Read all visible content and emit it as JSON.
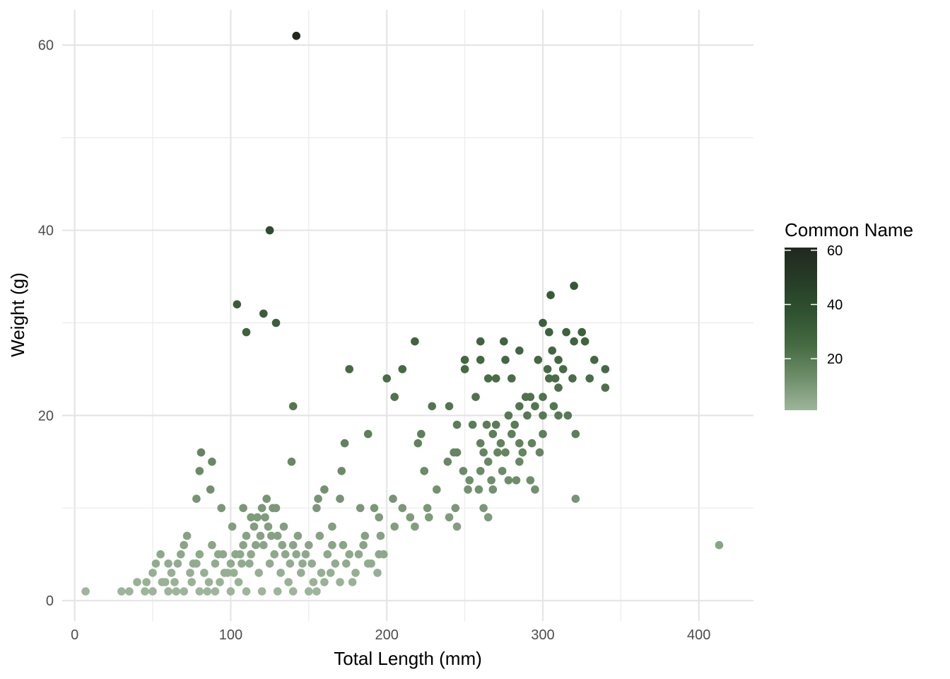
{
  "chart_data": {
    "type": "scatter",
    "xlabel": "Total Length (mm)",
    "ylabel": "Weight (g)",
    "xlim": [
      -8,
      435
    ],
    "ylim": [
      -2.2,
      63.8
    ],
    "x_ticks": [
      0,
      100,
      200,
      300,
      400
    ],
    "y_ticks": [
      0,
      20,
      40,
      60
    ],
    "grid": true,
    "legend": {
      "title": "Common Name",
      "position": "right",
      "type": "colorbar",
      "range": [
        1,
        61
      ],
      "ticks": [
        20,
        40,
        60
      ],
      "colors": [
        "#9db59a",
        "#6e8e6a",
        "#466a42",
        "#2f5230",
        "#263c27",
        "#22281f"
      ]
    },
    "color_by": "y",
    "points": [
      [
        142,
        61
      ],
      [
        125,
        40
      ],
      [
        104,
        32
      ],
      [
        121,
        31
      ],
      [
        110,
        29
      ],
      [
        129,
        30
      ],
      [
        140,
        21
      ],
      [
        139,
        15
      ],
      [
        81,
        16
      ],
      [
        80,
        14
      ],
      [
        88,
        15
      ],
      [
        87,
        12
      ],
      [
        78,
        11
      ],
      [
        94,
        10
      ],
      [
        101,
        8
      ],
      [
        176,
        25
      ],
      [
        188,
        18
      ],
      [
        173,
        17
      ],
      [
        171,
        14
      ],
      [
        160,
        12
      ],
      [
        156,
        11
      ],
      [
        155,
        10
      ],
      [
        170,
        11
      ],
      [
        165,
        8
      ],
      [
        200,
        24
      ],
      [
        218,
        28
      ],
      [
        210,
        25
      ],
      [
        205,
        22
      ],
      [
        220,
        17
      ],
      [
        222,
        18
      ],
      [
        229,
        21
      ],
      [
        240,
        21
      ],
      [
        250,
        26
      ],
      [
        260,
        28
      ],
      [
        250,
        25
      ],
      [
        257,
        22
      ],
      [
        260,
        26
      ],
      [
        265,
        24
      ],
      [
        270,
        24
      ],
      [
        275,
        28
      ],
      [
        276,
        26
      ],
      [
        280,
        24
      ],
      [
        285,
        27
      ],
      [
        297,
        26
      ],
      [
        300,
        30
      ],
      [
        305,
        33
      ],
      [
        320,
        34
      ],
      [
        304,
        29
      ],
      [
        315,
        29
      ],
      [
        325,
        29
      ],
      [
        306,
        27
      ],
      [
        310,
        26
      ],
      [
        303,
        25
      ],
      [
        313,
        25
      ],
      [
        320,
        28
      ],
      [
        327,
        28
      ],
      [
        333,
        26
      ],
      [
        340,
        25
      ],
      [
        340,
        23
      ],
      [
        330,
        24
      ],
      [
        319,
        24
      ],
      [
        304,
        24
      ],
      [
        308,
        24
      ],
      [
        310,
        23
      ],
      [
        300,
        22
      ],
      [
        292,
        22
      ],
      [
        289,
        22
      ],
      [
        285,
        21
      ],
      [
        295,
        21
      ],
      [
        307,
        21
      ],
      [
        316,
        20
      ],
      [
        300,
        20
      ],
      [
        310,
        20
      ],
      [
        290,
        20
      ],
      [
        278,
        20
      ],
      [
        282,
        19
      ],
      [
        270,
        19
      ],
      [
        264,
        19
      ],
      [
        255,
        19
      ],
      [
        245,
        19
      ],
      [
        260,
        17
      ],
      [
        273,
        17
      ],
      [
        285,
        17
      ],
      [
        293,
        17
      ],
      [
        300,
        18
      ],
      [
        321,
        18
      ],
      [
        268,
        18
      ],
      [
        280,
        18
      ],
      [
        262,
        16
      ],
      [
        271,
        16
      ],
      [
        276,
        16
      ],
      [
        287,
        16
      ],
      [
        298,
        16
      ],
      [
        243,
        16
      ],
      [
        245,
        16
      ],
      [
        265,
        15
      ],
      [
        239,
        15
      ],
      [
        285,
        15
      ],
      [
        260,
        14
      ],
      [
        274,
        14
      ],
      [
        224,
        14
      ],
      [
        249,
        14
      ],
      [
        253,
        13
      ],
      [
        267,
        13
      ],
      [
        278,
        13
      ],
      [
        283,
        13
      ],
      [
        292,
        13
      ],
      [
        252,
        12
      ],
      [
        259,
        12
      ],
      [
        268,
        12
      ],
      [
        295,
        12
      ],
      [
        232,
        12
      ],
      [
        321,
        11
      ],
      [
        204,
        11
      ],
      [
        210,
        10
      ],
      [
        226,
        10
      ],
      [
        244,
        10
      ],
      [
        262,
        10
      ],
      [
        192,
        10
      ],
      [
        183,
        10
      ],
      [
        195,
        9
      ],
      [
        215,
        9
      ],
      [
        227,
        9
      ],
      [
        240,
        9
      ],
      [
        265,
        9
      ],
      [
        205,
        8
      ],
      [
        245,
        8
      ],
      [
        218,
        8
      ],
      [
        413,
        6
      ],
      [
        7,
        1
      ],
      [
        30,
        1
      ],
      [
        35,
        1
      ],
      [
        40,
        2
      ],
      [
        45,
        1
      ],
      [
        50,
        3
      ],
      [
        52,
        4
      ],
      [
        55,
        5
      ],
      [
        58,
        2
      ],
      [
        60,
        4
      ],
      [
        62,
        3
      ],
      [
        65,
        1
      ],
      [
        68,
        5
      ],
      [
        70,
        6
      ],
      [
        72,
        7
      ],
      [
        75,
        2
      ],
      [
        78,
        4
      ],
      [
        80,
        5
      ],
      [
        83,
        3
      ],
      [
        85,
        1
      ],
      [
        88,
        6
      ],
      [
        90,
        4
      ],
      [
        93,
        2
      ],
      [
        95,
        5
      ],
      [
        98,
        3
      ],
      [
        100,
        4
      ],
      [
        103,
        5
      ],
      [
        105,
        2
      ],
      [
        108,
        6
      ],
      [
        110,
        7
      ],
      [
        113,
        5
      ],
      [
        115,
        8
      ],
      [
        117,
        9
      ],
      [
        120,
        10
      ],
      [
        122,
        9
      ],
      [
        124,
        8
      ],
      [
        127,
        10
      ],
      [
        130,
        7
      ],
      [
        133,
        6
      ],
      [
        135,
        5
      ],
      [
        138,
        4
      ],
      [
        140,
        6
      ],
      [
        143,
        7
      ],
      [
        145,
        3
      ],
      [
        148,
        5
      ],
      [
        150,
        6
      ],
      [
        153,
        2
      ],
      [
        155,
        1
      ],
      [
        158,
        3
      ],
      [
        162,
        5
      ],
      [
        167,
        4
      ],
      [
        172,
        6
      ],
      [
        176,
        5
      ],
      [
        180,
        3
      ],
      [
        185,
        6
      ],
      [
        190,
        4
      ],
      [
        195,
        5
      ],
      [
        178,
        2
      ],
      [
        170,
        2
      ],
      [
        160,
        2
      ],
      [
        150,
        1
      ],
      [
        140,
        1
      ],
      [
        130,
        1
      ],
      [
        120,
        1
      ],
      [
        110,
        1
      ],
      [
        100,
        1
      ],
      [
        90,
        1
      ],
      [
        80,
        1
      ],
      [
        70,
        1
      ],
      [
        60,
        1
      ],
      [
        50,
        1
      ],
      [
        112,
        4
      ],
      [
        118,
        3
      ],
      [
        125,
        4
      ],
      [
        132,
        3
      ],
      [
        137,
        2
      ],
      [
        128,
        5
      ],
      [
        96,
        3
      ],
      [
        86,
        2
      ],
      [
        74,
        3
      ],
      [
        64,
        2
      ],
      [
        56,
        2
      ],
      [
        46,
        2
      ],
      [
        66,
        4
      ],
      [
        76,
        4
      ],
      [
        92,
        5
      ],
      [
        102,
        3
      ],
      [
        107,
        4
      ],
      [
        121,
        6
      ],
      [
        126,
        7
      ],
      [
        116,
        6
      ],
      [
        106,
        5
      ],
      [
        142,
        5
      ],
      [
        146,
        4
      ],
      [
        152,
        4
      ],
      [
        164,
        3
      ],
      [
        174,
        4
      ],
      [
        182,
        5
      ],
      [
        188,
        4
      ],
      [
        194,
        3
      ],
      [
        198,
        5
      ],
      [
        186,
        7
      ],
      [
        196,
        7
      ],
      [
        165,
        6
      ],
      [
        157,
        7
      ],
      [
        134,
        8
      ],
      [
        123,
        11
      ],
      [
        129,
        10
      ],
      [
        113,
        9
      ],
      [
        108,
        10
      ],
      [
        119,
        7
      ]
    ]
  }
}
